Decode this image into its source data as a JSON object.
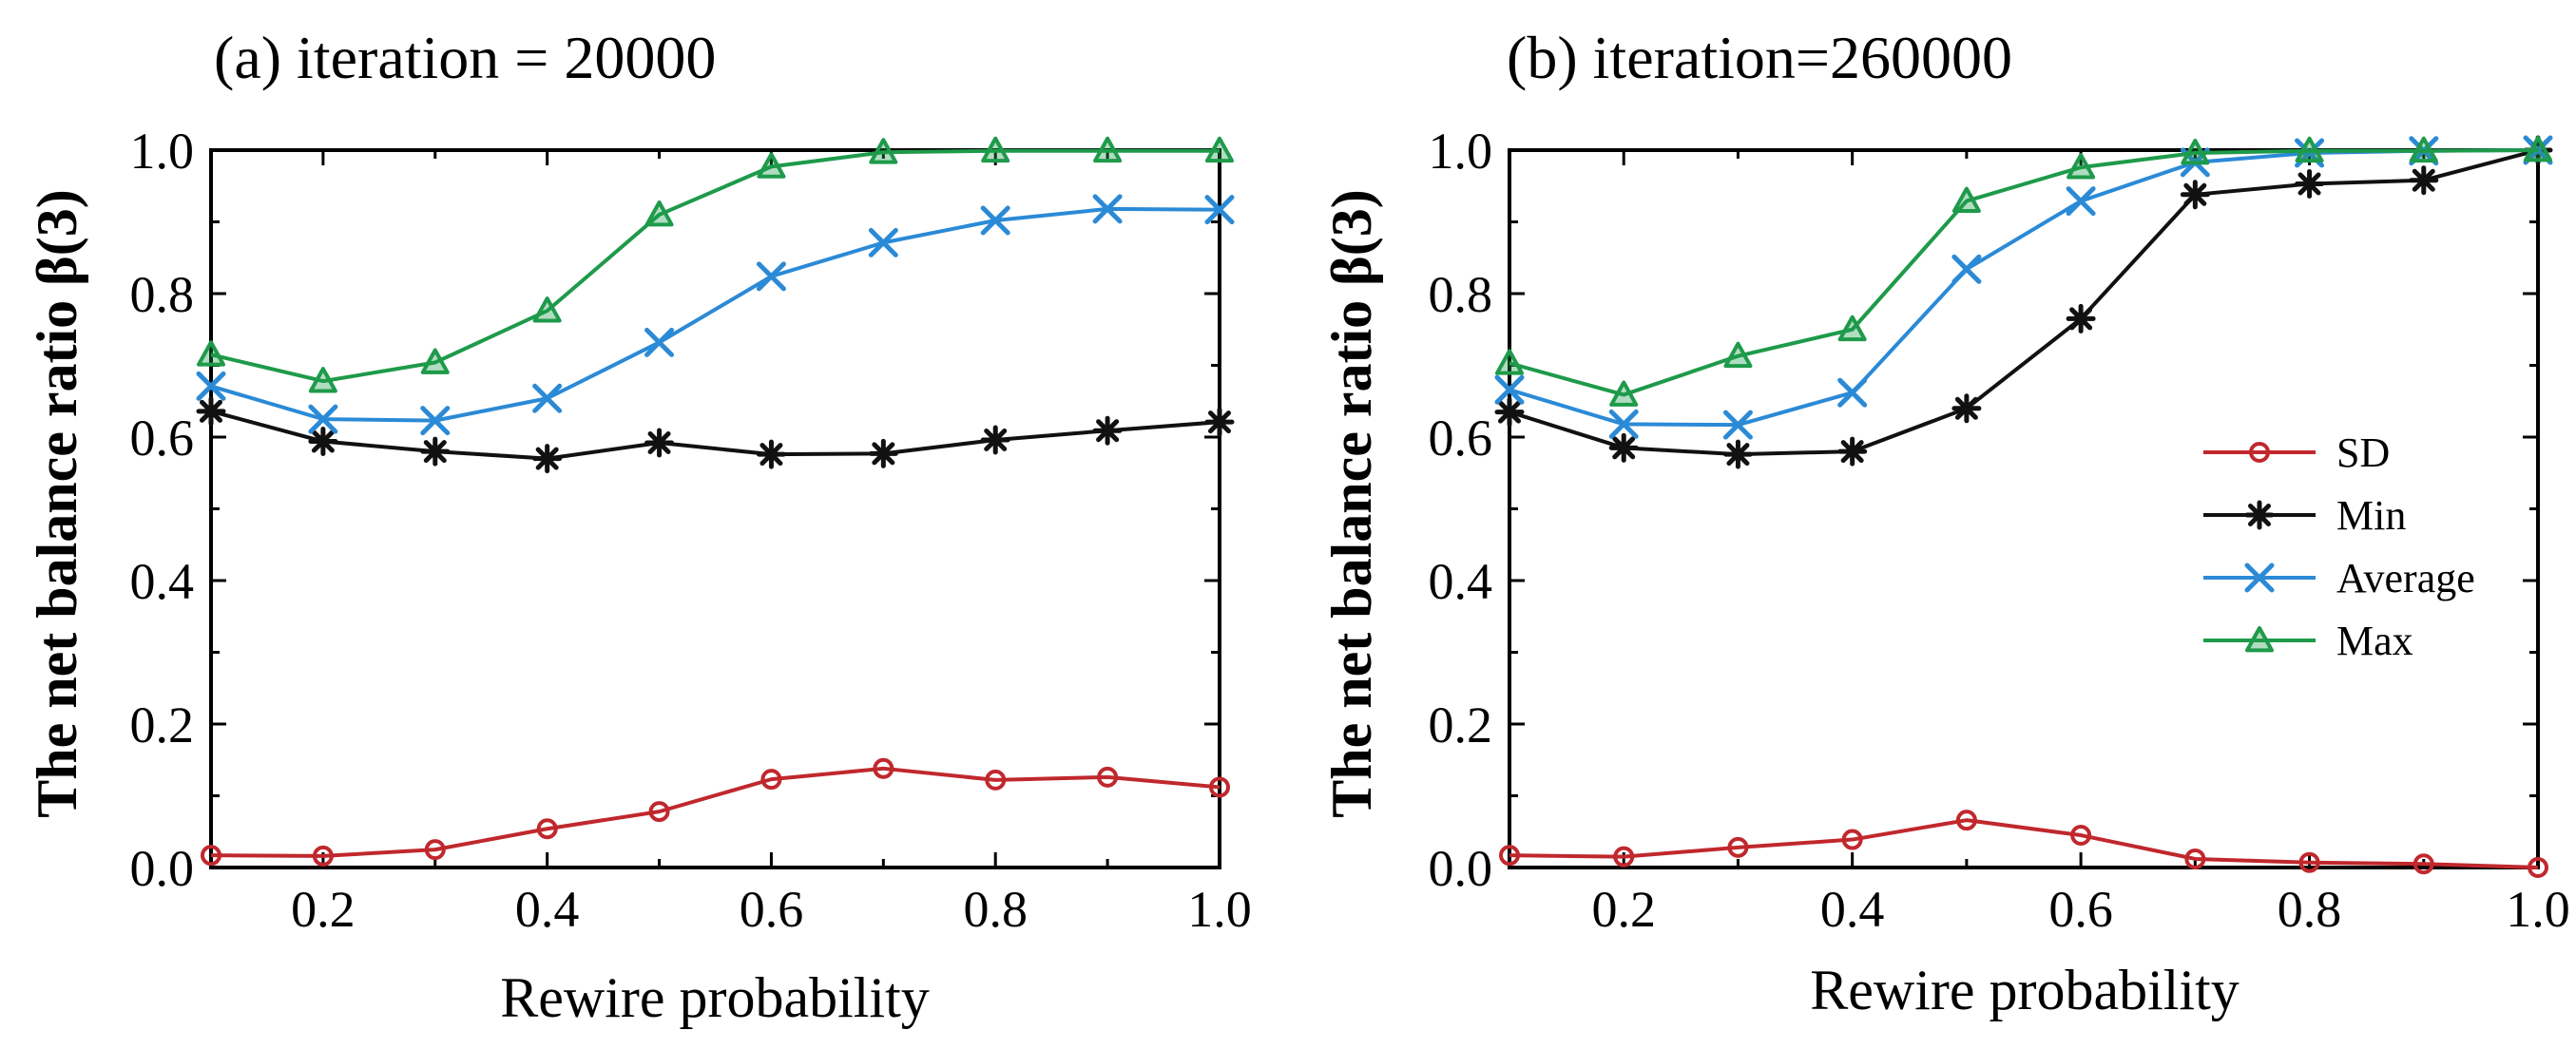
{
  "chart_data": [
    {
      "type": "line",
      "title": "(a) iteration = 20000",
      "xlabel": "Rewire probability",
      "ylabel": "The net balance ratio β(3)",
      "xlim": [
        0.1,
        1.0
      ],
      "ylim": [
        0.0,
        1.0
      ],
      "xticks": [
        "0.2",
        "0.4",
        "0.6",
        "0.8",
        "1.0"
      ],
      "yticks": [
        "0.0",
        "0.2",
        "0.4",
        "0.6",
        "0.8",
        "1.0"
      ],
      "x": [
        0.1,
        0.2,
        0.3,
        0.4,
        0.5,
        0.6,
        0.7,
        0.8,
        0.9,
        1.0
      ],
      "series": [
        {
          "name": "SD",
          "color": "#c0282d",
          "marker": "circle",
          "values": [
            0.017,
            0.016,
            0.025,
            0.054,
            0.078,
            0.123,
            0.138,
            0.122,
            0.126,
            0.112
          ]
        },
        {
          "name": "Min",
          "color": "#111111",
          "marker": "star",
          "values": [
            0.636,
            0.594,
            0.58,
            0.57,
            0.592,
            0.576,
            0.577,
            0.596,
            0.609,
            0.621
          ]
        },
        {
          "name": "Average",
          "color": "#2b8ad6",
          "marker": "x",
          "values": [
            0.671,
            0.625,
            0.623,
            0.654,
            0.732,
            0.824,
            0.871,
            0.902,
            0.918,
            0.917
          ]
        },
        {
          "name": "Max",
          "color": "#1e9a4a",
          "marker": "triangle",
          "values": [
            0.715,
            0.678,
            0.704,
            0.776,
            0.91,
            0.977,
            0.997,
            0.999,
            0.999,
            0.999
          ]
        }
      ]
    },
    {
      "type": "line",
      "title": "(b) iteration=260000",
      "xlabel": "Rewire probability",
      "ylabel": "The net balance ratio β(3)",
      "xlim": [
        0.1,
        1.0
      ],
      "ylim": [
        0.0,
        1.0
      ],
      "xticks": [
        "0.2",
        "0.4",
        "0.6",
        "0.8",
        "1.0"
      ],
      "yticks": [
        "0.0",
        "0.2",
        "0.4",
        "0.6",
        "0.8",
        "1.0"
      ],
      "x": [
        0.1,
        0.2,
        0.3,
        0.4,
        0.5,
        0.6,
        0.7,
        0.8,
        0.9,
        1.0
      ],
      "legend_position": "center-right",
      "series": [
        {
          "name": "SD",
          "color": "#c0282d",
          "marker": "circle",
          "values": [
            0.017,
            0.015,
            0.028,
            0.039,
            0.066,
            0.045,
            0.012,
            0.007,
            0.005,
            0.0
          ]
        },
        {
          "name": "Min",
          "color": "#111111",
          "marker": "star",
          "values": [
            0.635,
            0.585,
            0.576,
            0.58,
            0.64,
            0.765,
            0.938,
            0.953,
            0.958,
            1.0
          ]
        },
        {
          "name": "Average",
          "color": "#2b8ad6",
          "marker": "x",
          "values": [
            0.666,
            0.618,
            0.617,
            0.662,
            0.834,
            0.929,
            0.983,
            0.996,
            0.999,
            1.0
          ]
        },
        {
          "name": "Max",
          "color": "#1e9a4a",
          "marker": "triangle",
          "values": [
            0.703,
            0.659,
            0.713,
            0.75,
            0.929,
            0.976,
            0.996,
            0.999,
            0.999,
            1.0
          ]
        }
      ]
    }
  ]
}
